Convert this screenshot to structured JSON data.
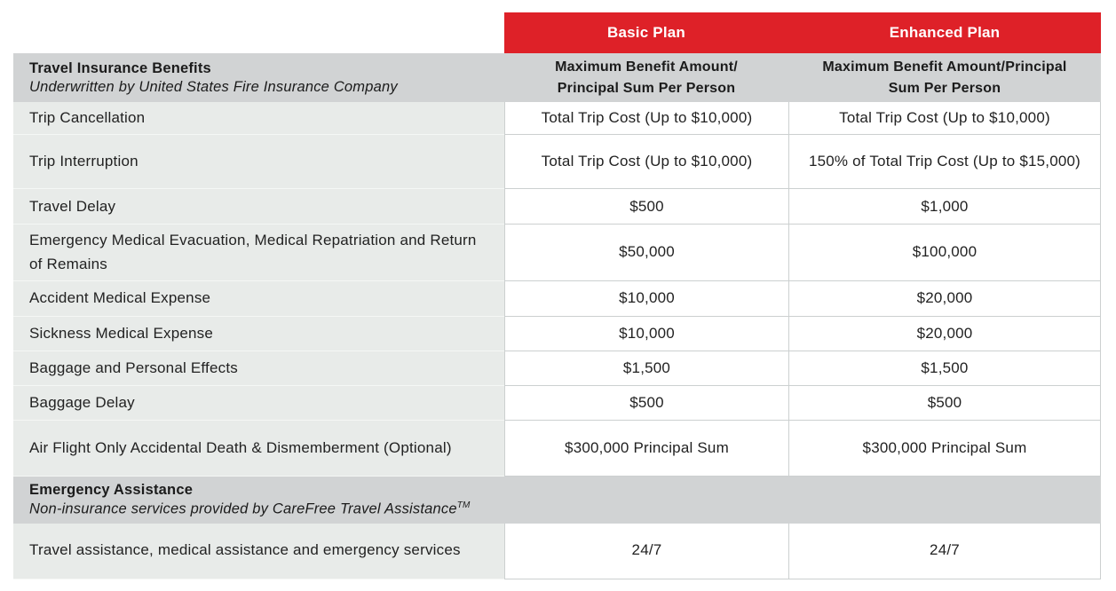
{
  "colors": {
    "plan_header_bg": "#de2128",
    "section_header_bg": "#d1d3d4",
    "label_column_bg": "#e8ebe9",
    "cell_border": "#ccd0d0",
    "text": "#222222"
  },
  "table": {
    "plan_header": {
      "basic": "Basic Plan",
      "enhanced": "Enhanced Plan"
    },
    "section1": {
      "title": "Travel Insurance Benefits",
      "subtitle": "Underwritten by United States Fire Insurance Company",
      "basic_header": "Maximum Benefit Amount/\nPrincipal Sum Per Person",
      "enhanced_header": "Maximum Benefit Amount/Principal\nSum Per Person"
    },
    "benefits": [
      {
        "label": "Trip Cancellation",
        "basic": "Total Trip Cost (Up to $10,000)",
        "enhanced": "Total Trip Cost (Up to $10,000)"
      },
      {
        "label": "Trip Interruption",
        "basic": "Total Trip Cost (Up to $10,000)",
        "enhanced": "150% of Total Trip Cost (Up to $15,000)"
      },
      {
        "label": "Travel Delay",
        "basic": "$500",
        "enhanced": "$1,000"
      },
      {
        "label": "Emergency Medical Evacuation, Medical Repatriation and Return of Remains",
        "basic": "$50,000",
        "enhanced": "$100,000"
      },
      {
        "label": "Accident Medical Expense",
        "basic": "$10,000",
        "enhanced": "$20,000"
      },
      {
        "label": "Sickness Medical Expense",
        "basic": "$10,000",
        "enhanced": "$20,000"
      },
      {
        "label": "Baggage and Personal Effects",
        "basic": "$1,500",
        "enhanced": "$1,500"
      },
      {
        "label": "Baggage Delay",
        "basic": "$500",
        "enhanced": "$500"
      },
      {
        "label": "Air Flight Only Accidental Death & Dismemberment (Optional)",
        "basic": "$300,000 Principal Sum",
        "enhanced": "$300,000 Principal Sum"
      }
    ],
    "section2": {
      "title": "Emergency Assistance",
      "subtitle": "Non-insurance services provided by CareFree Travel Assistance",
      "subtitle_superscript": "TM"
    },
    "assistance": [
      {
        "label": "Travel assistance, medical assistance and emergency services",
        "basic": "24/7",
        "enhanced": "24/7"
      }
    ]
  }
}
